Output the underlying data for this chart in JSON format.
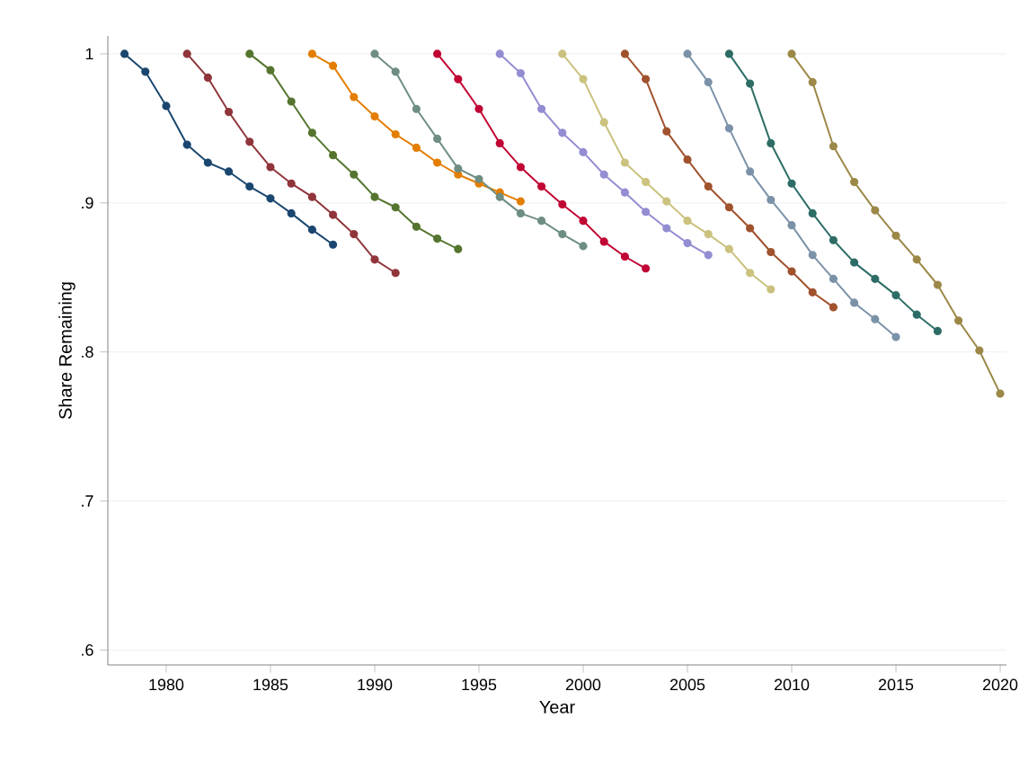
{
  "chart_data": {
    "type": "line",
    "xlabel": "Year",
    "ylabel": "Share Remaining",
    "xlim": [
      1977.2,
      2020.3
    ],
    "ylim": [
      0.59,
      1.012
    ],
    "xticks": [
      1980,
      1985,
      1990,
      1995,
      2000,
      2005,
      2010,
      2015,
      2020
    ],
    "yticks": [
      {
        "value": 0.6,
        "label": ".6"
      },
      {
        "value": 0.7,
        "label": ".7"
      },
      {
        "value": 0.8,
        "label": ".8"
      },
      {
        "value": 0.9,
        "label": ".9"
      },
      {
        "value": 1,
        "label": "1"
      }
    ],
    "grid": "y",
    "marker": "circle",
    "line_style": "solid",
    "series": [
      {
        "color": "#1a476f",
        "x": [
          1978,
          1979,
          1980,
          1981,
          1982,
          1983,
          1984,
          1985,
          1986,
          1987,
          1988
        ],
        "values": [
          1,
          0.988,
          0.965,
          0.939,
          0.927,
          0.921,
          0.911,
          0.903,
          0.893,
          0.882,
          0.872
        ]
      },
      {
        "color": "#90353b",
        "x": [
          1981,
          1982,
          1983,
          1984,
          1985,
          1986,
          1987,
          1988,
          1989,
          1990,
          1991
        ],
        "values": [
          1,
          0.984,
          0.961,
          0.941,
          0.924,
          0.913,
          0.904,
          0.892,
          0.879,
          0.862,
          0.853
        ]
      },
      {
        "color": "#55752f",
        "x": [
          1984,
          1985,
          1986,
          1987,
          1988,
          1989,
          1990,
          1991,
          1992,
          1993,
          1994
        ],
        "values": [
          1,
          0.989,
          0.968,
          0.947,
          0.932,
          0.919,
          0.904,
          0.897,
          0.884,
          0.876,
          0.869
        ]
      },
      {
        "color": "#e37e00",
        "x": [
          1987,
          1988,
          1989,
          1990,
          1991,
          1992,
          1993,
          1994,
          1995,
          1996,
          1997
        ],
        "values": [
          1,
          0.992,
          0.971,
          0.958,
          0.946,
          0.937,
          0.927,
          0.919,
          0.913,
          0.907,
          0.901
        ]
      },
      {
        "color": "#6e8e84",
        "x": [
          1990,
          1991,
          1992,
          1993,
          1994,
          1995,
          1996,
          1997,
          1998,
          1999,
          2000
        ],
        "values": [
          1,
          0.988,
          0.963,
          0.943,
          0.923,
          0.916,
          0.904,
          0.893,
          0.888,
          0.879,
          0.871
        ]
      },
      {
        "color": "#c10534",
        "x": [
          1993,
          1994,
          1995,
          1996,
          1997,
          1998,
          1999,
          2000,
          2001,
          2002,
          2003
        ],
        "values": [
          1,
          0.983,
          0.963,
          0.94,
          0.924,
          0.911,
          0.899,
          0.888,
          0.874,
          0.864,
          0.856
        ]
      },
      {
        "color": "#938dd2",
        "x": [
          1996,
          1997,
          1998,
          1999,
          2000,
          2001,
          2002,
          2003,
          2004,
          2005,
          2006
        ],
        "values": [
          1,
          0.987,
          0.963,
          0.947,
          0.934,
          0.919,
          0.907,
          0.894,
          0.883,
          0.873,
          0.865
        ]
      },
      {
        "color": "#cac27e",
        "x": [
          1999,
          2000,
          2001,
          2002,
          2003,
          2004,
          2005,
          2006,
          2007,
          2008,
          2009
        ],
        "values": [
          1,
          0.983,
          0.954,
          0.927,
          0.914,
          0.901,
          0.888,
          0.879,
          0.869,
          0.853,
          0.842
        ]
      },
      {
        "color": "#a0522d",
        "x": [
          2002,
          2003,
          2004,
          2005,
          2006,
          2007,
          2008,
          2009,
          2010,
          2011,
          2012
        ],
        "values": [
          1,
          0.983,
          0.948,
          0.929,
          0.911,
          0.897,
          0.883,
          0.867,
          0.854,
          0.84,
          0.83
        ]
      },
      {
        "color": "#7b92a8",
        "x": [
          2005,
          2006,
          2007,
          2008,
          2009,
          2010,
          2011,
          2012,
          2013,
          2014,
          2015
        ],
        "values": [
          1,
          0.981,
          0.95,
          0.921,
          0.902,
          0.885,
          0.865,
          0.849,
          0.833,
          0.822,
          0.81
        ]
      },
      {
        "color": "#2d6d66",
        "x": [
          2007,
          2008,
          2009,
          2010,
          2011,
          2012,
          2013,
          2014,
          2015,
          2016,
          2017
        ],
        "values": [
          1,
          0.98,
          0.94,
          0.913,
          0.893,
          0.875,
          0.86,
          0.849,
          0.838,
          0.825,
          0.814
        ]
      },
      {
        "color": "#9c8847",
        "x": [
          2010,
          2011,
          2012,
          2013,
          2014,
          2015,
          2016,
          2017,
          2018,
          2019,
          2020
        ],
        "values": [
          1,
          0.981,
          0.938,
          0.914,
          0.895,
          0.878,
          0.862,
          0.845,
          0.821,
          0.801,
          0.772
        ]
      }
    ]
  }
}
